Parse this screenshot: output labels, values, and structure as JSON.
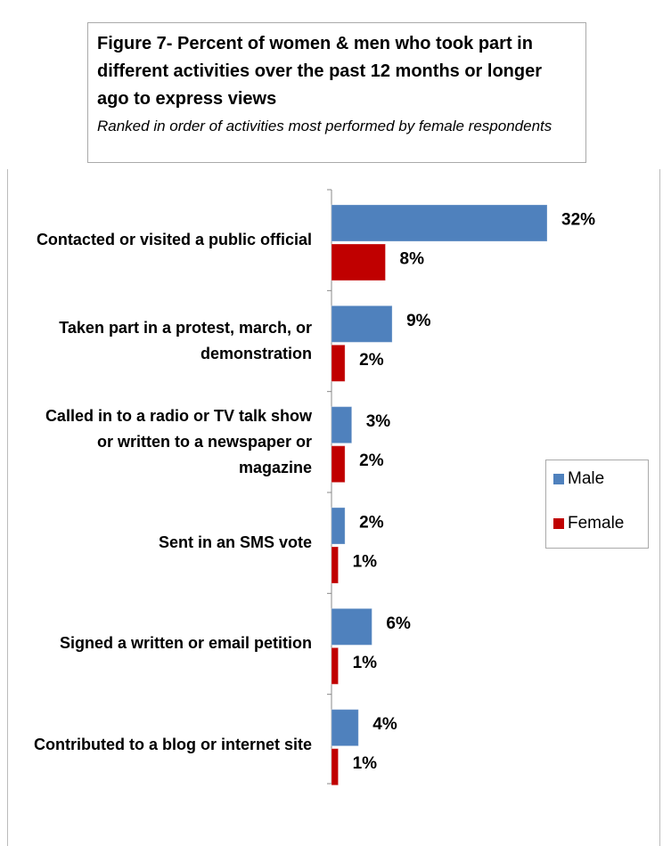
{
  "chart_data": {
    "type": "bar",
    "orientation": "horizontal",
    "title": "Figure 7- Percent of women & men who took part in different activities over the past 12 months or longer ago to express views",
    "subtitle": "Ranked in order of activities most performed by female respondents",
    "categories": [
      "Contacted or visited a public official",
      "Taken part in a protest, march, or demonstration",
      "Called in to a radio or TV talk show or  written to a newspaper or magazine",
      "Sent in an SMS vote",
      "Signed a written or email petition",
      "Contributed to a blog or internet site"
    ],
    "series": [
      {
        "name": "Male",
        "color": "#4f81bd",
        "values": [
          32,
          9,
          3,
          2,
          6,
          4
        ],
        "value_labels": [
          "32%",
          "9%",
          "3%",
          "2%",
          "6%",
          "4%"
        ]
      },
      {
        "name": "Female",
        "color": "#c00000",
        "values": [
          8,
          2,
          2,
          1,
          1,
          1
        ],
        "value_labels": [
          "8%",
          "2%",
          "2%",
          "1%",
          "1%",
          "1%"
        ]
      }
    ],
    "legend": "right"
  }
}
